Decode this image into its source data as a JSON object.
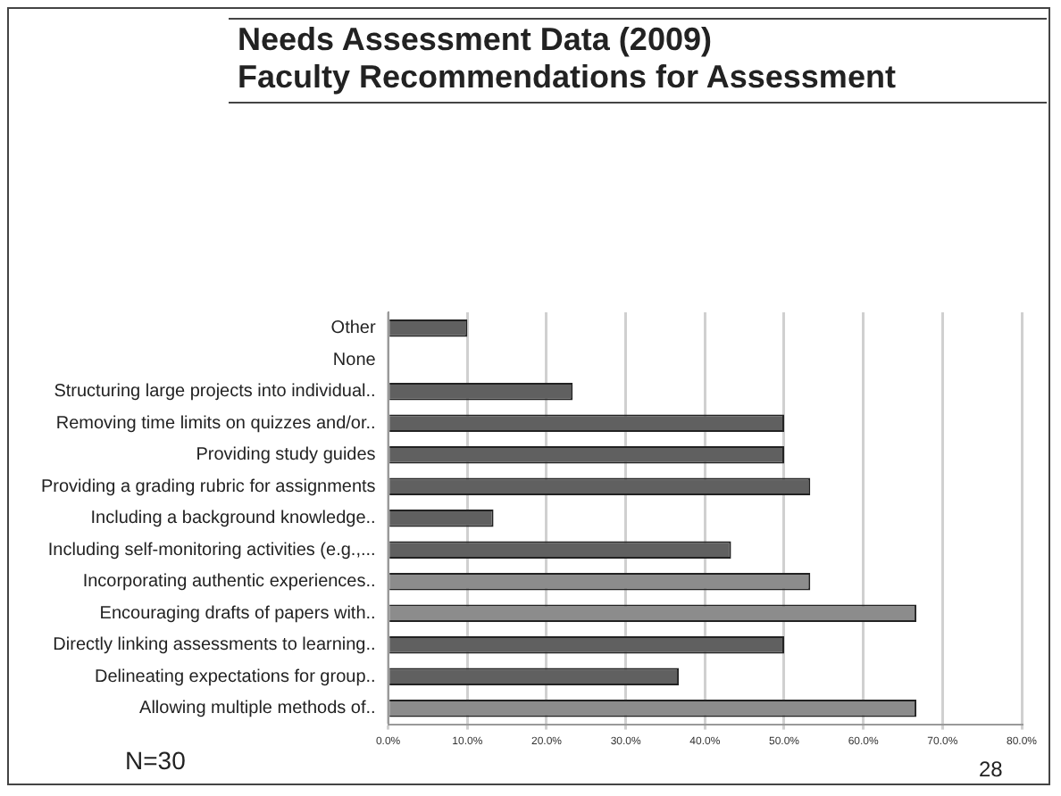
{
  "chart_data": {
    "type": "bar",
    "orientation": "horizontal",
    "title": "Needs Assessment Data  (2009)",
    "subtitle": "Faculty Recommendations for Assessment",
    "categories": [
      "Other",
      "None",
      "Structuring large projects into individual..",
      "Removing time limits on quizzes and/or..",
      "Providing study guides",
      "Providing a grading rubric for assignments",
      "Including a background knowledge..",
      "Including self-monitoring activities (e.g.,...",
      "Incorporating authentic experiences..",
      "Encouraging drafts of papers with..",
      "Directly linking assessments to learning..",
      "Delineating expectations for group..",
      "Allowing multiple methods of.."
    ],
    "values": [
      10,
      0,
      23.3,
      50,
      50,
      53.3,
      13.3,
      43.3,
      53.3,
      66.7,
      50,
      36.7,
      66.7
    ],
    "colors": [
      "#606060",
      "#606060",
      "#606060",
      "#606060",
      "#606060",
      "#606060",
      "#606060",
      "#606060",
      "#8c8c8c",
      "#8c8c8c",
      "#606060",
      "#606060",
      "#8c8c8c"
    ],
    "xlim": [
      0,
      80
    ],
    "xticks": [
      {
        "value": 0,
        "label": "0.0%"
      },
      {
        "value": 10,
        "label": "10.0%"
      },
      {
        "value": 20,
        "label": "20.0%"
      },
      {
        "value": 30,
        "label": "30.0%"
      },
      {
        "value": 40,
        "label": "40.0%"
      },
      {
        "value": 50,
        "label": "50.0%"
      },
      {
        "value": 60,
        "label": "60.0%"
      },
      {
        "value": 70,
        "label": "70.0%"
      },
      {
        "value": 80,
        "label": "80.0%"
      }
    ],
    "grid": "x",
    "legend": false,
    "annotations": [
      "N=30",
      "28"
    ]
  }
}
